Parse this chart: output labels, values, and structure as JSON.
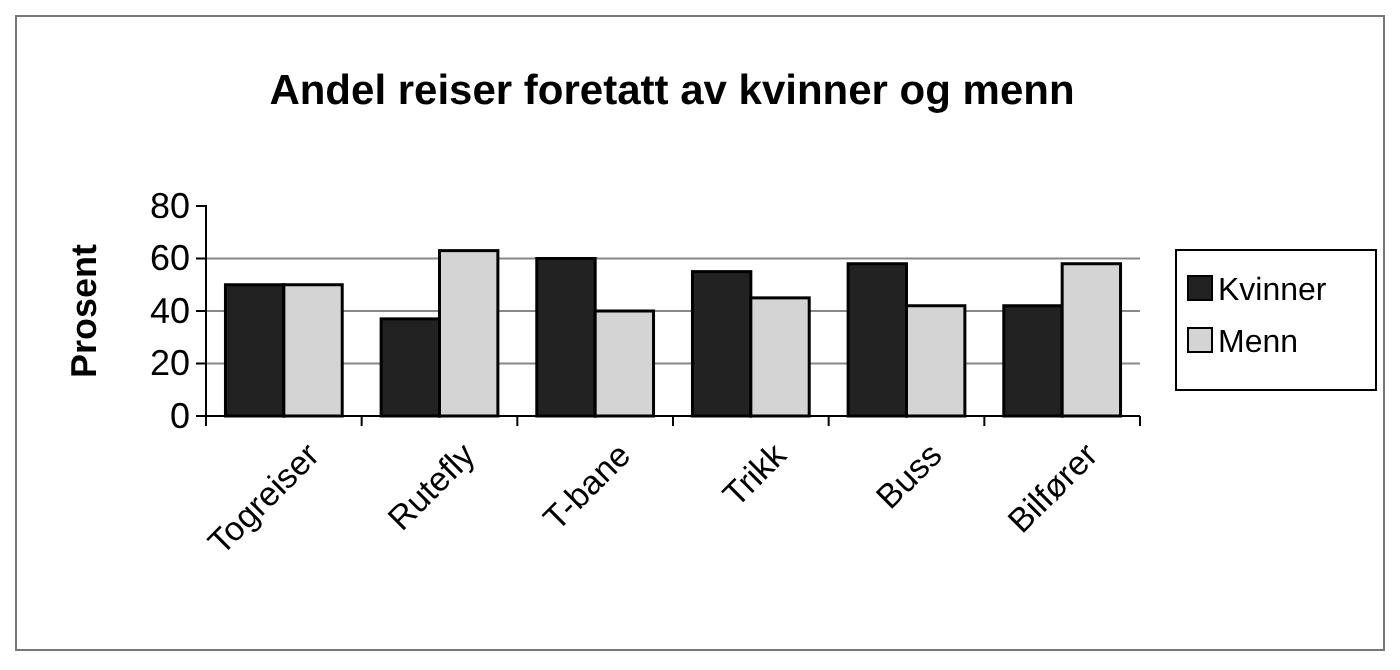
{
  "chart_data": {
    "type": "bar",
    "title": "Andel reiser foretatt av kvinner og menn",
    "ylabel": "Prosent",
    "categories": [
      "Togreiser",
      "Rutefly",
      "T-bane",
      "Trikk",
      "Buss",
      "Bilfører"
    ],
    "series": [
      {
        "name": "Kvinner",
        "color": "#222222",
        "values": [
          50,
          37,
          60,
          55,
          58,
          42
        ]
      },
      {
        "name": "Menn",
        "color": "#d4d4d4",
        "values": [
          50,
          63,
          40,
          45,
          42,
          58
        ]
      }
    ],
    "ylim": [
      0,
      80
    ],
    "yticks": [
      0,
      20,
      40,
      60,
      80
    ],
    "grid": "y",
    "legend": "right"
  }
}
